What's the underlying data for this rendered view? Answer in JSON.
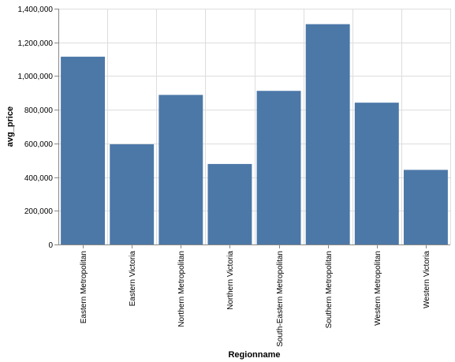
{
  "chart_data": {
    "type": "bar",
    "xlabel": "Regionname",
    "ylabel": "avg_price",
    "categories": [
      "Eastern Metropolitan",
      "Eastern Victoria",
      "Northern Metropolitan",
      "Northern Victoria",
      "South-Eastern Metropolitan",
      "Southern Metropolitan",
      "Western Metropolitan",
      "Western Victoria"
    ],
    "values": [
      1115000,
      595000,
      888000,
      478000,
      912000,
      1308000,
      842000,
      443000
    ],
    "ylim": [
      0,
      1400000
    ],
    "yticks": [
      0,
      200000,
      400000,
      600000,
      800000,
      1000000,
      1200000,
      1400000
    ],
    "ytick_labels": [
      "0",
      "200,000",
      "400,000",
      "600,000",
      "800,000",
      "1,000,000",
      "1,200,000",
      "1,400,000"
    ],
    "grid": true,
    "bar_color": "#4c78a8",
    "grid_color": "#dddddd",
    "axis_color": "#888888"
  }
}
